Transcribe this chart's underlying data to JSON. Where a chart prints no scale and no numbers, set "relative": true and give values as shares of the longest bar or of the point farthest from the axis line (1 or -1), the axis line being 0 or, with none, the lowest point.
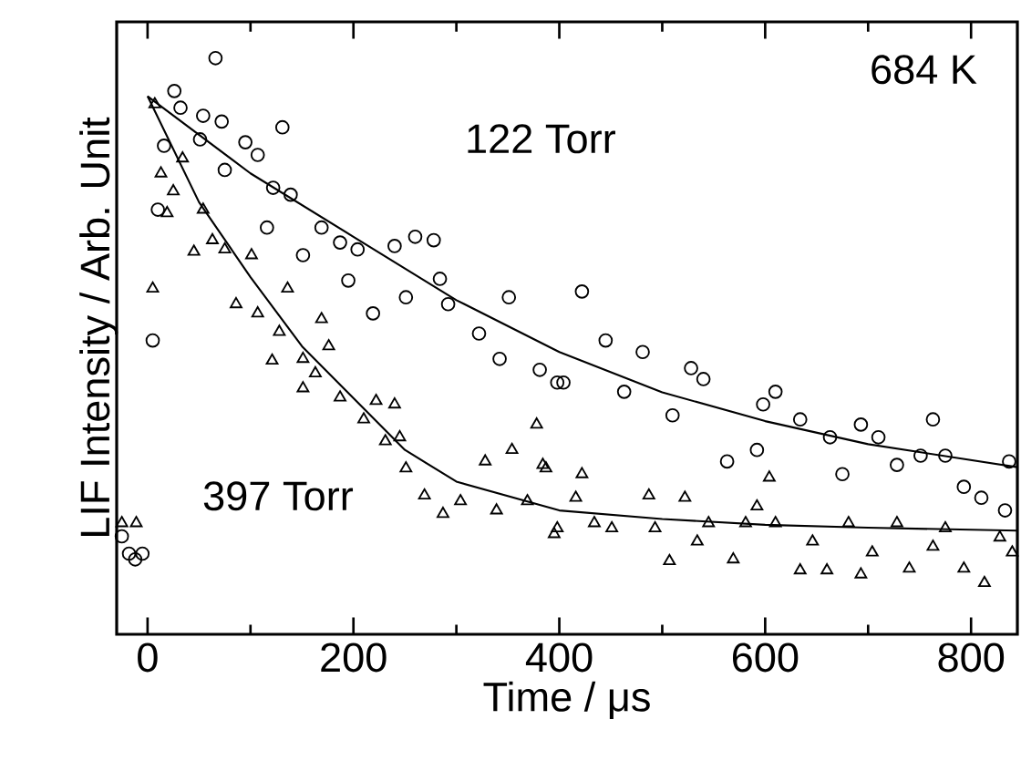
{
  "chart_data": {
    "type": "scatter",
    "relative": true,
    "xlabel": "Time / μs",
    "ylabel": "LIF Intensity / Arb. Unit",
    "annotations": [
      "684 K"
    ],
    "xlim": [
      -30,
      845
    ],
    "xticks": [
      0,
      200,
      400,
      600,
      800
    ],
    "tick_labels": "x",
    "series": [
      {
        "name": "122 Torr",
        "marker": "circle",
        "color": "#000000",
        "x": [
          -25,
          -18,
          -12,
          -5,
          5,
          10,
          16,
          26,
          32,
          51,
          54,
          66,
          72,
          75,
          95,
          107,
          116,
          122,
          131,
          139,
          151,
          169,
          187,
          195,
          204,
          219,
          240,
          251,
          260,
          278,
          284,
          292,
          322,
          342,
          351,
          381,
          398,
          404,
          422,
          445,
          463,
          481,
          510,
          528,
          540,
          563,
          592,
          598,
          610,
          634,
          663,
          675,
          693,
          710,
          728,
          751,
          763,
          775,
          793,
          810,
          833,
          837
        ],
        "values": [
          0.17,
          0.14,
          0.13,
          0.14,
          0.51,
          0.737,
          0.848,
          0.943,
          0.914,
          0.859,
          0.9,
          1.0,
          0.89,
          0.806,
          0.854,
          0.832,
          0.706,
          0.775,
          0.88,
          0.763,
          0.658,
          0.706,
          0.68,
          0.614,
          0.668,
          0.557,
          0.674,
          0.585,
          0.69,
          0.684,
          0.617,
          0.573,
          0.522,
          0.478,
          0.585,
          0.459,
          0.437,
          0.437,
          0.595,
          0.51,
          0.421,
          0.49,
          0.38,
          0.462,
          0.443,
          0.3,
          0.32,
          0.399,
          0.421,
          0.373,
          0.342,
          0.278,
          0.364,
          0.342,
          0.294,
          0.31,
          0.373,
          0.31,
          0.256,
          0.237,
          0.215,
          0.3
        ]
      },
      {
        "name": "397 Torr",
        "marker": "triangle",
        "color": "#000000",
        "x": [
          -25,
          -11,
          5,
          7,
          13,
          19,
          25,
          34,
          45,
          54,
          63,
          75,
          86,
          101,
          107,
          121,
          128,
          136,
          151,
          151,
          163,
          169,
          176,
          187,
          210,
          222,
          231,
          240,
          245,
          251,
          269,
          287,
          304,
          328,
          339,
          354,
          369,
          378,
          384,
          387,
          395,
          398,
          416,
          422,
          434,
          451,
          487,
          493,
          507,
          522,
          534,
          545,
          569,
          581,
          592,
          604,
          610,
          634,
          646,
          660,
          681,
          693,
          704,
          728,
          740,
          763,
          775,
          793,
          813,
          828,
          840
        ],
        "values": [
          0.193,
          0.193,
          0.6,
          0.92,
          0.8,
          0.731,
          0.769,
          0.826,
          0.664,
          0.737,
          0.684,
          0.668,
          0.573,
          0.658,
          0.557,
          0.475,
          0.525,
          0.6,
          0.478,
          0.427,
          0.453,
          0.547,
          0.5,
          0.411,
          0.373,
          0.405,
          0.335,
          0.399,
          0.342,
          0.288,
          0.241,
          0.209,
          0.231,
          0.3,
          0.215,
          0.32,
          0.231,
          0.364,
          0.294,
          0.288,
          0.174,
          0.184,
          0.237,
          0.278,
          0.193,
          0.184,
          0.241,
          0.184,
          0.127,
          0.237,
          0.161,
          0.193,
          0.13,
          0.193,
          0.222,
          0.272,
          0.193,
          0.111,
          0.161,
          0.111,
          0.193,
          0.104,
          0.142,
          0.193,
          0.114,
          0.152,
          0.184,
          0.114,
          0.089,
          0.168,
          0.142
        ]
      },
      {
        "type": "line",
        "color": "#000000",
        "marker": "none",
        "line_style": "solid",
        "x": [
          0,
          100,
          200,
          300,
          400,
          500,
          600,
          700,
          845
        ],
        "values": [
          0.934,
          0.8,
          0.69,
          0.58,
          0.49,
          0.42,
          0.37,
          0.33,
          0.29
        ]
      },
      {
        "type": "line",
        "color": "#000000",
        "marker": "none",
        "line_style": "solid",
        "x": [
          0,
          50,
          100,
          150,
          200,
          250,
          300,
          400,
          500,
          600,
          700,
          845
        ],
        "values": [
          0.934,
          0.75,
          0.62,
          0.5,
          0.41,
          0.32,
          0.265,
          0.215,
          0.2,
          0.19,
          0.185,
          0.18
        ]
      }
    ]
  }
}
